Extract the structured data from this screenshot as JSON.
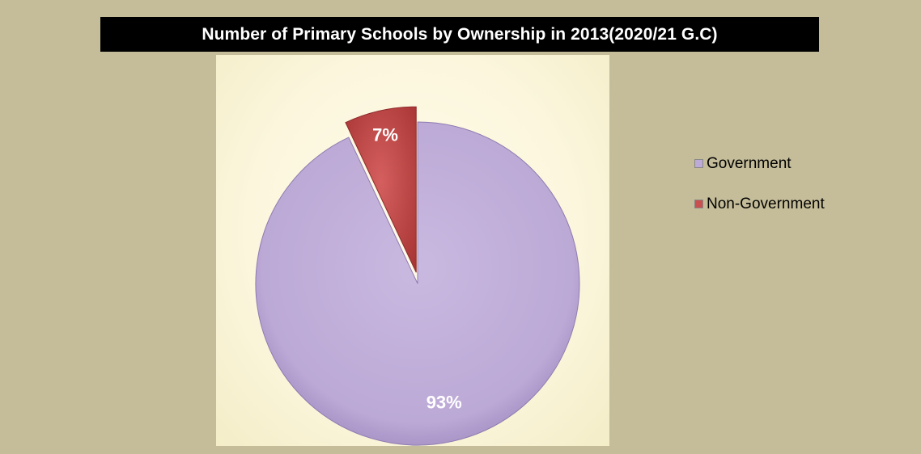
{
  "chart_data": {
    "type": "pie",
    "title": "Number of Primary Schools by Ownership in 2013(2020/21 G.C)",
    "series": [
      {
        "name": "Government",
        "value": 93,
        "label": "93%",
        "color": "#bdaad6"
      },
      {
        "name": "Non-Government",
        "value": 7,
        "label": "7%",
        "color": "#c9504f"
      }
    ],
    "legend_position": "right"
  }
}
